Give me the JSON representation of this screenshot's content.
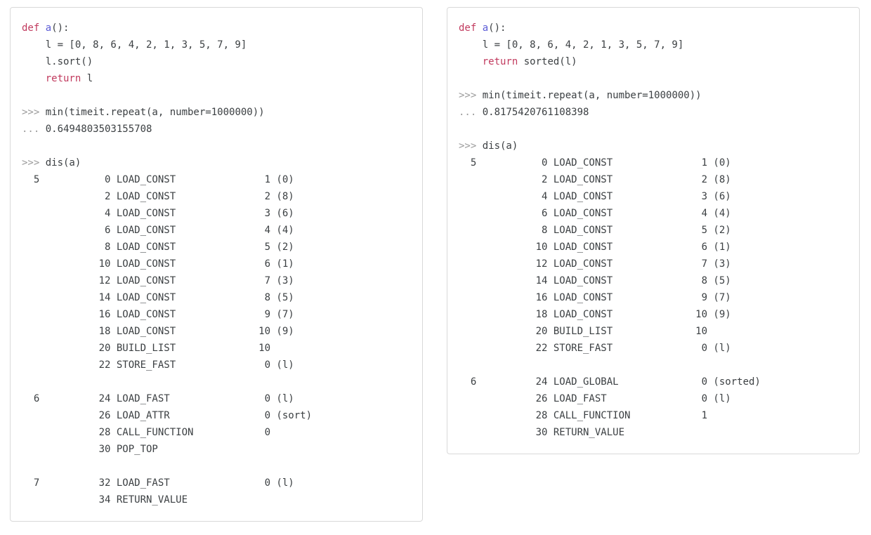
{
  "colors": {
    "body_text": "#3c4043",
    "keyword": "#c13a5e",
    "function_name": "#5b5bd6",
    "prompt": "#9b9b9b",
    "panel_border": "#d9d9d9",
    "panel_background": "#ffffff",
    "page_background": "#ffffff"
  },
  "panels": [
    {
      "name": "code-panel-list-sort",
      "lines": [
        [
          {
            "t": "def",
            "c": "keyword"
          },
          {
            "t": " "
          },
          {
            "t": "a",
            "c": "function"
          },
          {
            "t": "():"
          }
        ],
        [
          {
            "t": "    l = [0, 8, 6, 4, 2, 1, 3, 5, 7, 9]"
          }
        ],
        [
          {
            "t": "    l.sort()"
          }
        ],
        [
          {
            "t": "    "
          },
          {
            "t": "return",
            "c": "keyword"
          },
          {
            "t": " l"
          }
        ],
        [],
        [
          {
            "t": ">>> ",
            "c": "prompt"
          },
          {
            "t": "min(timeit.repeat(a, number=1000000))"
          }
        ],
        [
          {
            "t": "... ",
            "c": "prompt"
          },
          {
            "t": "0.6494803503155708"
          }
        ],
        [],
        [
          {
            "t": ">>> ",
            "c": "prompt"
          },
          {
            "t": "dis(a)"
          }
        ],
        [
          {
            "t": "  5           0 LOAD_CONST               1 (0)"
          }
        ],
        [
          {
            "t": "              2 LOAD_CONST               2 (8)"
          }
        ],
        [
          {
            "t": "              4 LOAD_CONST               3 (6)"
          }
        ],
        [
          {
            "t": "              6 LOAD_CONST               4 (4)"
          }
        ],
        [
          {
            "t": "              8 LOAD_CONST               5 (2)"
          }
        ],
        [
          {
            "t": "             10 LOAD_CONST               6 (1)"
          }
        ],
        [
          {
            "t": "             12 LOAD_CONST               7 (3)"
          }
        ],
        [
          {
            "t": "             14 LOAD_CONST               8 (5)"
          }
        ],
        [
          {
            "t": "             16 LOAD_CONST               9 (7)"
          }
        ],
        [
          {
            "t": "             18 LOAD_CONST              10 (9)"
          }
        ],
        [
          {
            "t": "             20 BUILD_LIST              10"
          }
        ],
        [
          {
            "t": "             22 STORE_FAST               0 (l)"
          }
        ],
        [],
        [
          {
            "t": "  6          24 LOAD_FAST                0 (l)"
          }
        ],
        [
          {
            "t": "             26 LOAD_ATTR                0 (sort)"
          }
        ],
        [
          {
            "t": "             28 CALL_FUNCTION            0"
          }
        ],
        [
          {
            "t": "             30 POP_TOP"
          }
        ],
        [],
        [
          {
            "t": "  7          32 LOAD_FAST                0 (l)"
          }
        ],
        [
          {
            "t": "             34 RETURN_VALUE"
          }
        ]
      ]
    },
    {
      "name": "code-panel-sorted-builtin",
      "lines": [
        [
          {
            "t": "def",
            "c": "keyword"
          },
          {
            "t": " "
          },
          {
            "t": "a",
            "c": "function"
          },
          {
            "t": "():"
          }
        ],
        [
          {
            "t": "    l = [0, 8, 6, 4, 2, 1, 3, 5, 7, 9]"
          }
        ],
        [
          {
            "t": "    "
          },
          {
            "t": "return",
            "c": "keyword"
          },
          {
            "t": " sorted(l)"
          }
        ],
        [],
        [
          {
            "t": ">>> ",
            "c": "prompt"
          },
          {
            "t": "min(timeit.repeat(a, number=1000000))"
          }
        ],
        [
          {
            "t": "... ",
            "c": "prompt"
          },
          {
            "t": "0.8175420761108398"
          }
        ],
        [],
        [
          {
            "t": ">>> ",
            "c": "prompt"
          },
          {
            "t": "dis(a)"
          }
        ],
        [
          {
            "t": "  5           0 LOAD_CONST               1 (0)"
          }
        ],
        [
          {
            "t": "              2 LOAD_CONST               2 (8)"
          }
        ],
        [
          {
            "t": "              4 LOAD_CONST               3 (6)"
          }
        ],
        [
          {
            "t": "              6 LOAD_CONST               4 (4)"
          }
        ],
        [
          {
            "t": "              8 LOAD_CONST               5 (2)"
          }
        ],
        [
          {
            "t": "             10 LOAD_CONST               6 (1)"
          }
        ],
        [
          {
            "t": "             12 LOAD_CONST               7 (3)"
          }
        ],
        [
          {
            "t": "             14 LOAD_CONST               8 (5)"
          }
        ],
        [
          {
            "t": "             16 LOAD_CONST               9 (7)"
          }
        ],
        [
          {
            "t": "             18 LOAD_CONST              10 (9)"
          }
        ],
        [
          {
            "t": "             20 BUILD_LIST              10"
          }
        ],
        [
          {
            "t": "             22 STORE_FAST               0 (l)"
          }
        ],
        [],
        [
          {
            "t": "  6          24 LOAD_GLOBAL              0 (sorted)"
          }
        ],
        [
          {
            "t": "             26 LOAD_FAST                0 (l)"
          }
        ],
        [
          {
            "t": "             28 CALL_FUNCTION            1"
          }
        ],
        [
          {
            "t": "             30 RETURN_VALUE"
          }
        ]
      ]
    }
  ]
}
